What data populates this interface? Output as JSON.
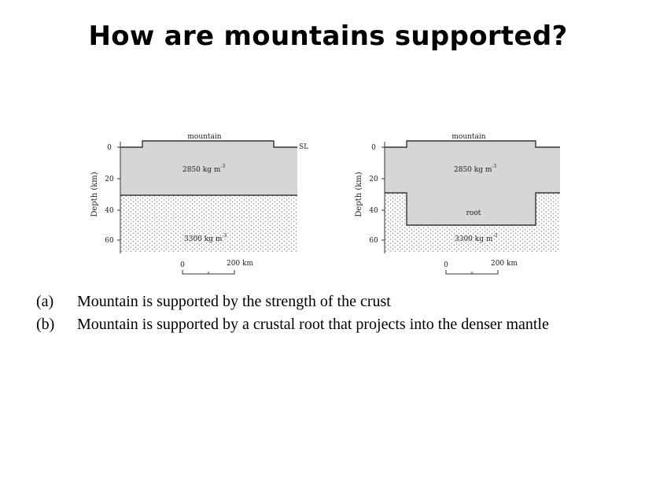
{
  "title": "How are mountains supported?",
  "diagram": {
    "panel_a": {
      "axis_label": "Depth (km)",
      "depth_ticks": [
        "0",
        "20",
        "40",
        "60"
      ],
      "mountain_label": "mountain",
      "sea_level_label": "SL",
      "crust_density": "2850 kg m",
      "mantle_density": "3300 kg m",
      "exponent": "-3",
      "scale_start": "0",
      "scale_end": "200 km"
    },
    "panel_b": {
      "axis_label": "Depth (km)",
      "depth_ticks": [
        "0",
        "20",
        "40",
        "60"
      ],
      "mountain_label": "mountain",
      "crust_density": "2850 kg m",
      "root_label": "root",
      "mantle_density": "3300 kg m",
      "exponent": "-3",
      "scale_start": "0",
      "scale_end": "200 km"
    }
  },
  "captions": [
    {
      "tag": "(a)",
      "text": "Mountain is supported by the strength of the crust"
    },
    {
      "tag": "(b)",
      "text": "Mountain is supported by a crustal root that projects into the denser mantle"
    }
  ],
  "colors": {
    "crust": "#d6d6d6",
    "mantle_dots": "#8a8a8a",
    "background": "#ffffff"
  }
}
